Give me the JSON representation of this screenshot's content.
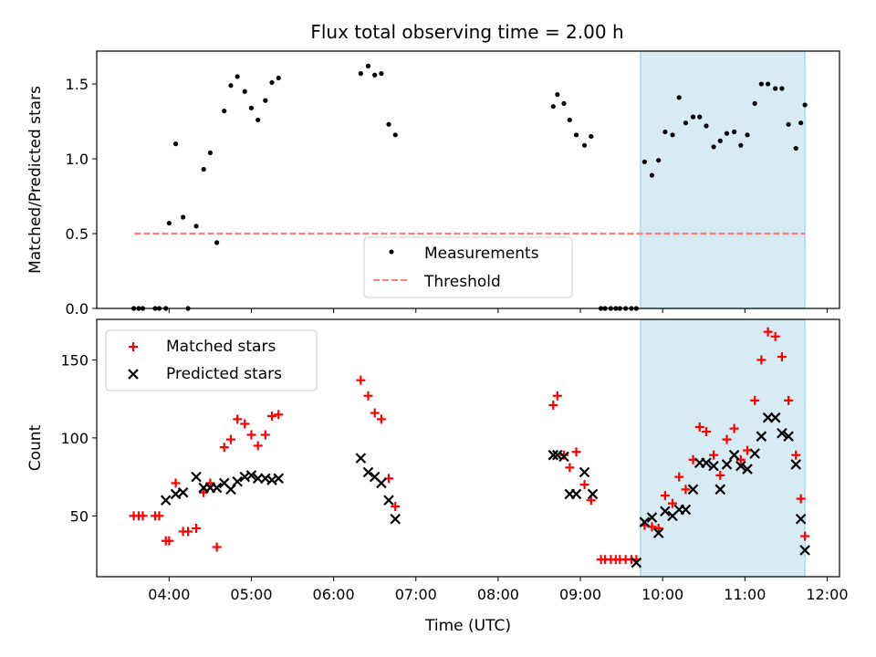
{
  "title": "Flux total observing time = 2.00 h",
  "colors": {
    "measurement": "#000000",
    "threshold": "#ff7f7f",
    "matched": "#ff0000",
    "predicted": "#000000",
    "shade": "#add8e6"
  },
  "chart_data": [
    {
      "type": "scatter",
      "ylabel": "Matched/Predicted stars",
      "x_ticks": [
        "04:00",
        "05:00",
        "06:00",
        "07:00",
        "08:00",
        "09:00",
        "10:00",
        "11:00",
        "12:00"
      ],
      "x_tick_hours": [
        4,
        5,
        6,
        7,
        8,
        9,
        10,
        11,
        12
      ],
      "xlim_hours": [
        3.12,
        12.15
      ],
      "ylim": [
        0,
        1.72
      ],
      "y_ticks": [
        0.0,
        0.5,
        1.0,
        1.5
      ],
      "y_tick_labels": [
        "0.0",
        "0.5",
        "1.0",
        "1.5"
      ],
      "shaded_span_hours": [
        9.73,
        11.73
      ],
      "legend": {
        "position": "lower center",
        "measurements_label": "Measurements",
        "threshold_label": "Threshold"
      },
      "threshold": {
        "value": 0.5,
        "x_hours": [
          3.58,
          11.73
        ]
      },
      "series": [
        {
          "name": "Measurements",
          "x_hours": [
            3.57,
            3.63,
            3.68,
            3.83,
            3.88,
            3.96,
            4.0,
            4.08,
            4.17,
            4.23,
            4.33,
            4.42,
            4.5,
            4.58,
            4.67,
            4.75,
            4.83,
            4.92,
            5.0,
            5.08,
            5.17,
            5.25,
            5.33,
            6.33,
            6.42,
            6.5,
            6.58,
            6.67,
            6.75,
            8.67,
            8.72,
            8.8,
            8.87,
            8.95,
            9.05,
            9.13,
            9.25,
            9.3,
            9.37,
            9.43,
            9.48,
            9.55,
            9.62,
            9.68,
            9.78,
            9.87,
            9.95,
            10.03,
            10.12,
            10.2,
            10.28,
            10.37,
            10.45,
            10.53,
            10.62,
            10.7,
            10.78,
            10.87,
            10.95,
            11.03,
            11.12,
            11.2,
            11.28,
            11.37,
            11.45,
            11.53,
            11.62,
            11.68,
            11.73
          ],
          "y": [
            0,
            0,
            0,
            0,
            0,
            0,
            0.57,
            1.1,
            0.61,
            0,
            0.55,
            0.93,
            1.04,
            0.44,
            1.32,
            1.49,
            1.55,
            1.45,
            1.34,
            1.26,
            1.39,
            1.51,
            1.54,
            1.57,
            1.62,
            1.56,
            1.57,
            1.23,
            1.16,
            1.35,
            1.43,
            1.37,
            1.26,
            1.16,
            1.09,
            1.15,
            0,
            0,
            0,
            0,
            0,
            0,
            0,
            0,
            0.98,
            0.89,
            0.99,
            1.18,
            1.16,
            1.41,
            1.24,
            1.28,
            1.28,
            1.22,
            1.08,
            1.12,
            1.17,
            1.18,
            1.09,
            1.16,
            1.37,
            1.5,
            1.5,
            1.47,
            1.47,
            1.23,
            1.07,
            1.24,
            1.36
          ]
        }
      ]
    },
    {
      "type": "scatter",
      "xlabel": "Time (UTC)",
      "ylabel": "Count",
      "x_ticks": [
        "04:00",
        "05:00",
        "06:00",
        "07:00",
        "08:00",
        "09:00",
        "10:00",
        "11:00",
        "12:00"
      ],
      "x_tick_hours": [
        4,
        5,
        6,
        7,
        8,
        9,
        10,
        11,
        12
      ],
      "xlim_hours": [
        3.12,
        12.15
      ],
      "ylim": [
        11,
        176
      ],
      "y_ticks": [
        50,
        100,
        150
      ],
      "y_tick_labels": [
        "50",
        "100",
        "150"
      ],
      "shaded_span_hours": [
        9.73,
        11.73
      ],
      "legend": {
        "position": "upper left"
      },
      "series": [
        {
          "name": "Matched stars",
          "marker": "+",
          "x_hours": [
            3.57,
            3.63,
            3.68,
            3.83,
            3.88,
            3.96,
            4.0,
            4.08,
            4.17,
            4.23,
            4.33,
            4.42,
            4.5,
            4.58,
            4.67,
            4.75,
            4.83,
            4.92,
            5.0,
            5.08,
            5.17,
            5.25,
            5.33,
            6.33,
            6.42,
            6.5,
            6.58,
            6.67,
            6.75,
            8.67,
            8.72,
            8.8,
            8.87,
            8.95,
            9.05,
            9.13,
            9.25,
            9.3,
            9.37,
            9.43,
            9.48,
            9.55,
            9.62,
            9.68,
            9.78,
            9.87,
            9.95,
            10.03,
            10.12,
            10.2,
            10.28,
            10.37,
            10.45,
            10.53,
            10.62,
            10.7,
            10.78,
            10.87,
            10.95,
            11.03,
            11.12,
            11.2,
            11.28,
            11.37,
            11.45,
            11.53,
            11.62,
            11.68,
            11.73
          ],
          "y": [
            50,
            50,
            50,
            50,
            50,
            34,
            34,
            71,
            40,
            40,
            42,
            65,
            71,
            30,
            94,
            99,
            112,
            109,
            102,
            95,
            102,
            114,
            115,
            137,
            127,
            116,
            112,
            74,
            56,
            121,
            127,
            89,
            81,
            91,
            70,
            60,
            22,
            22,
            22,
            22,
            22,
            22,
            22,
            22,
            44,
            43,
            42,
            63,
            58,
            75,
            67,
            86,
            107,
            104,
            89,
            76,
            99,
            106,
            86,
            92,
            124,
            150,
            168,
            165,
            152,
            124,
            89,
            61,
            37
          ]
        },
        {
          "name": "Predicted stars",
          "marker": "x",
          "x_hours": [
            3.96,
            4.08,
            4.17,
            4.33,
            4.42,
            4.5,
            4.58,
            4.67,
            4.75,
            4.83,
            4.92,
            5.0,
            5.08,
            5.17,
            5.25,
            5.33,
            6.33,
            6.42,
            6.5,
            6.58,
            6.67,
            6.75,
            8.67,
            8.72,
            8.8,
            8.87,
            8.95,
            9.05,
            9.15,
            9.68,
            9.78,
            9.87,
            9.95,
            10.03,
            10.12,
            10.2,
            10.28,
            10.37,
            10.45,
            10.53,
            10.62,
            10.7,
            10.78,
            10.87,
            10.95,
            11.03,
            11.12,
            11.2,
            11.28,
            11.37,
            11.45,
            11.53,
            11.62,
            11.68,
            11.73
          ],
          "y": [
            60,
            64,
            65,
            75,
            68,
            68,
            68,
            71,
            67,
            72,
            75,
            76,
            74,
            74,
            73,
            74,
            87,
            78,
            75,
            71,
            60,
            48,
            89,
            89,
            88,
            64,
            64,
            78,
            64,
            20,
            46,
            49,
            39,
            53,
            50,
            54,
            54,
            67,
            84,
            84,
            82,
            67,
            83,
            89,
            82,
            80,
            90,
            101,
            113,
            113,
            103,
            101,
            83,
            48,
            28
          ]
        }
      ]
    }
  ]
}
